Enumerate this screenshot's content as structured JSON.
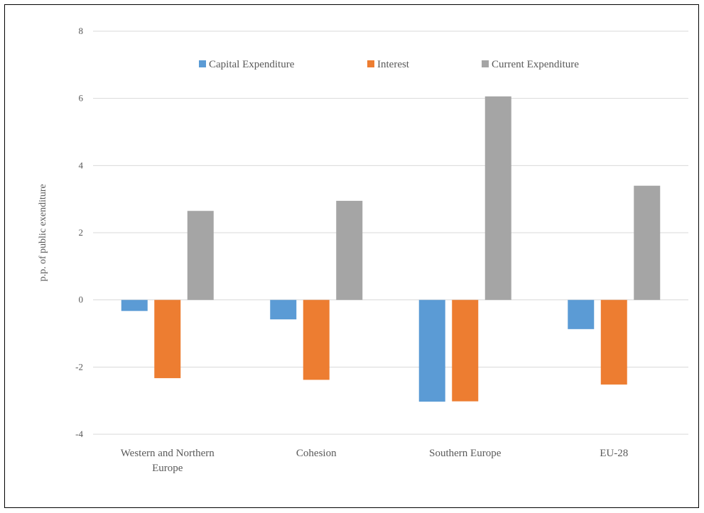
{
  "chart_data": {
    "type": "bar",
    "categories": [
      [
        "Western and Northern",
        "Europe"
      ],
      [
        "Cohesion"
      ],
      [
        "Southern Europe"
      ],
      [
        "EU-28"
      ]
    ],
    "series": [
      {
        "name": "Capital Expenditure",
        "color": "#5B9BD5",
        "values": [
          -0.33,
          -0.58,
          -3.03,
          -0.87
        ]
      },
      {
        "name": "Interest",
        "color": "#ED7D31",
        "values": [
          -2.33,
          -2.38,
          -3.02,
          -2.52
        ]
      },
      {
        "name": "Current Expenditure",
        "color": "#A5A5A5",
        "values": [
          2.65,
          2.95,
          6.06,
          3.4
        ]
      }
    ],
    "ylabel": "p.p. of public exenditure",
    "ylim": [
      -4,
      8
    ],
    "yticks": [
      -4,
      -2,
      0,
      2,
      4,
      6,
      8
    ],
    "yticklabels": [
      "-4",
      "-2",
      "0",
      "2",
      "4",
      "6",
      "8"
    ],
    "grid": true,
    "legend_position": "top-center"
  }
}
